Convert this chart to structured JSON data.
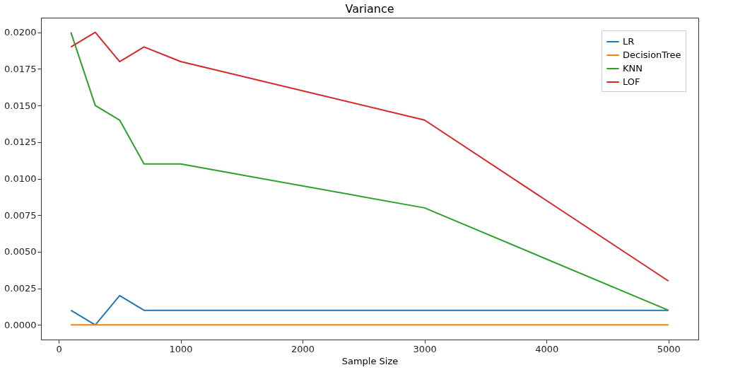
{
  "chart_data": {
    "type": "line",
    "title": "Variance",
    "xlabel": "Sample Size",
    "x": [
      100,
      300,
      500,
      700,
      1000,
      3000,
      5000
    ],
    "series": [
      {
        "name": "LR",
        "color": "#1f77b4",
        "values": [
          0.001,
          0,
          0.002,
          0.001,
          0.001,
          0.001,
          0.001
        ]
      },
      {
        "name": "DecisionTree",
        "color": "#ff7f0e",
        "values": [
          0,
          0,
          0,
          0,
          0,
          0,
          0
        ]
      },
      {
        "name": "KNN",
        "color": "#2ca02c",
        "values": [
          0.02,
          0.015,
          0.014,
          0.011,
          0.011,
          0.008,
          0.001
        ]
      },
      {
        "name": "LOF",
        "color": "#d62728",
        "values": [
          0.019,
          0.02,
          0.018,
          0.019,
          0.018,
          0.014,
          0.003
        ]
      }
    ],
    "xlim": [
      -145,
      5245
    ],
    "xticks": [
      0,
      1000,
      2000,
      3000,
      4000,
      5000
    ],
    "ylim": [
      -0.001,
      0.021
    ],
    "yticks": [
      {
        "value": 0,
        "label": "0.0000"
      },
      {
        "value": 0.0025,
        "label": "0.0025"
      },
      {
        "value": 0.005,
        "label": "0.0050"
      },
      {
        "value": 0.0075,
        "label": "0.0075"
      },
      {
        "value": 0.01,
        "label": "0.0100"
      },
      {
        "value": 0.0125,
        "label": "0.0125"
      },
      {
        "value": 0.015,
        "label": "0.0150"
      },
      {
        "value": 0.0175,
        "label": "0.0175"
      },
      {
        "value": 0.02,
        "label": "0.0200"
      }
    ],
    "grid": false,
    "legend": "top right"
  }
}
